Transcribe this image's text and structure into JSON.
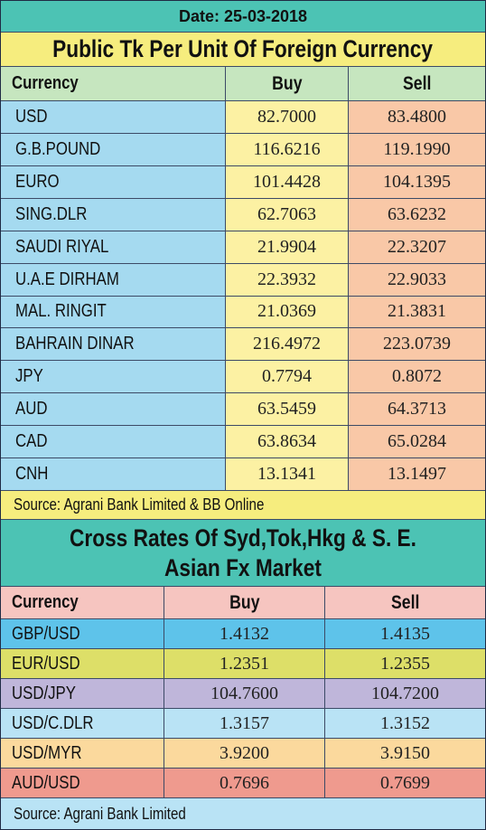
{
  "date_line": "Date: 25-03-2018",
  "table1": {
    "title": "Public Tk Per Unit Of Foreign Currency",
    "headers": {
      "currency": "Currency",
      "buy": "Buy",
      "sell": "Sell"
    },
    "rows": [
      {
        "currency": "USD",
        "buy": "82.7000",
        "sell": "83.4800"
      },
      {
        "currency": "G.B.POUND",
        "buy": "116.6216",
        "sell": "119.1990"
      },
      {
        "currency": "EURO",
        "buy": "101.4428",
        "sell": "104.1395"
      },
      {
        "currency": "SING.DLR",
        "buy": "62.7063",
        "sell": "63.6232"
      },
      {
        "currency": "SAUDI RIYAL",
        "buy": "21.9904",
        "sell": "22.3207"
      },
      {
        "currency": "U.A.E DIRHAM",
        "buy": "22.3932",
        "sell": "22.9033"
      },
      {
        "currency": "MAL. RINGIT",
        "buy": "21.0369",
        "sell": "21.3831"
      },
      {
        "currency": "BAHRAIN DINAR",
        "buy": "216.4972",
        "sell": "223.0739"
      },
      {
        "currency": "JPY",
        "buy": "0.7794",
        "sell": "0.8072"
      },
      {
        "currency": "AUD",
        "buy": "63.5459",
        "sell": "64.3713"
      },
      {
        "currency": "CAD",
        "buy": "63.8634",
        "sell": "65.0284"
      },
      {
        "currency": "CNH",
        "buy": "13.1341",
        "sell": "13.1497"
      }
    ],
    "source": "Source: Agrani Bank Limited & BB Online"
  },
  "table2": {
    "title_line1": "Cross Rates Of Syd,Tok,Hkg & S. E.",
    "title_line2": "Asian Fx Market",
    "headers": {
      "currency": "Currency",
      "buy": "Buy",
      "sell": "Sell"
    },
    "rows": [
      {
        "currency": "GBP/USD",
        "buy": "1.4132",
        "sell": "1.4135"
      },
      {
        "currency": "EUR/USD",
        "buy": "1.2351",
        "sell": "1.2355"
      },
      {
        "currency": "USD/JPY",
        "buy": "104.7600",
        "sell": "104.7200"
      },
      {
        "currency": "USD/C.DLR",
        "buy": "1.3157",
        "sell": "1.3152"
      },
      {
        "currency": "USD/MYR",
        "buy": "3.9200",
        "sell": "3.9150"
      },
      {
        "currency": "AUD/USD",
        "buy": "0.7696",
        "sell": "0.7699"
      }
    ],
    "source": "Source:  Agrani Bank Limited"
  },
  "colors": {
    "teal": "#4cc3b4",
    "yellow": "#f6ed7e",
    "light_green": "#c6e6bf",
    "light_blue": "#a5daf0",
    "pale_yellow": "#fcf1a3",
    "peach": "#f9c8a7",
    "pink": "#f6c5c0",
    "row_blue": "#5ec3ea",
    "row_yellow_green": "#dddf68",
    "row_lavender": "#bfb6da",
    "row_pale_blue": "#b9e3f5",
    "row_tan": "#fbd99d",
    "row_salmon": "#ef9a8e"
  }
}
